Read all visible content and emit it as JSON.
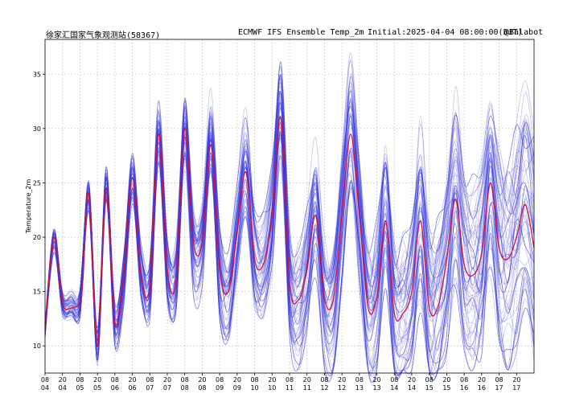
{
  "header": {
    "station": "徐家汇国家气象观测站(58367)",
    "product": "ECMWF IFS Ensemble Temp_2m",
    "initial": "Initial:2025-04-04 08:00:00(BJT)",
    "credit": "@Balabot"
  },
  "colors": {
    "control": "#d0103a",
    "members": "#3a3ae0",
    "dense": "#1a18c8",
    "grid": "#bdbdbd"
  },
  "chart_data": {
    "type": "line",
    "title": "ECMWF IFS Ensemble Temp_2m",
    "xlabel": "",
    "ylabel": "Temperature_2m",
    "ylim": [
      7.5,
      38.2
    ],
    "yticks": [
      10,
      15,
      20,
      25,
      30,
      35
    ],
    "xlim_hours": [
      0,
      336
    ],
    "x_tick_interval_hours": 12,
    "xticks": [
      {
        "hour": "08",
        "day": "04"
      },
      {
        "hour": "20",
        "day": "04"
      },
      {
        "hour": "08",
        "day": "05"
      },
      {
        "hour": "20",
        "day": "05"
      },
      {
        "hour": "08",
        "day": "06"
      },
      {
        "hour": "20",
        "day": "06"
      },
      {
        "hour": "08",
        "day": "07"
      },
      {
        "hour": "20",
        "day": "07"
      },
      {
        "hour": "08",
        "day": "08"
      },
      {
        "hour": "20",
        "day": "08"
      },
      {
        "hour": "08",
        "day": "09"
      },
      {
        "hour": "20",
        "day": "09"
      },
      {
        "hour": "08",
        "day": "10"
      },
      {
        "hour": "20",
        "day": "10"
      },
      {
        "hour": "08",
        "day": "11"
      },
      {
        "hour": "20",
        "day": "11"
      },
      {
        "hour": "08",
        "day": "12"
      },
      {
        "hour": "20",
        "day": "12"
      },
      {
        "hour": "08",
        "day": "13"
      },
      {
        "hour": "20",
        "day": "13"
      },
      {
        "hour": "08",
        "day": "14"
      },
      {
        "hour": "20",
        "day": "14"
      },
      {
        "hour": "08",
        "day": "15"
      },
      {
        "hour": "20",
        "day": "15"
      },
      {
        "hour": "08",
        "day": "16"
      },
      {
        "hour": "20",
        "day": "16"
      },
      {
        "hour": "08",
        "day": "17"
      },
      {
        "hour": "20",
        "day": "17"
      }
    ],
    "grid": true,
    "member_count": 50,
    "control_series": {
      "x_hours": [
        0,
        6,
        12,
        18,
        24,
        26,
        30,
        36,
        42,
        48,
        54,
        60,
        66,
        72,
        78,
        84,
        90,
        96,
        102,
        108,
        114,
        120,
        126,
        132,
        138,
        144,
        150,
        156,
        162,
        168,
        174,
        180,
        186,
        192,
        198,
        204,
        210,
        216,
        222,
        228,
        234,
        240,
        246,
        252,
        258,
        264,
        270,
        276,
        282,
        288,
        294,
        300,
        306,
        312,
        318,
        324,
        330,
        336
      ],
      "values": [
        11.5,
        20,
        14,
        13.5,
        14,
        16,
        24,
        10,
        24.5,
        12,
        16.5,
        25.5,
        16.5,
        15.5,
        29.5,
        17,
        16,
        30,
        19.5,
        19.5,
        28.5,
        17,
        15,
        20.5,
        26,
        18,
        17.5,
        22,
        31,
        15.8,
        14.2,
        17,
        22,
        14.4,
        14.2,
        22,
        29.5,
        22,
        13.5,
        14.5,
        21.5,
        13,
        13,
        15,
        21.5,
        13.5,
        13.6,
        18,
        23.5,
        17.5,
        16.5,
        18.5,
        25,
        19,
        18,
        20,
        23,
        19
      ]
    },
    "ensemble_peaks": [
      20.5,
      24,
      24.5,
      26.5,
      30,
      30.5,
      32.5,
      33,
      33,
      35,
      34.5,
      35,
      35.5,
      36.2,
      36.5,
      36.8
    ],
    "ensemble_troughs": [
      12,
      8,
      11,
      14,
      14,
      12,
      11,
      10,
      9,
      8,
      8.5,
      9,
      9,
      9.5,
      10
    ]
  }
}
